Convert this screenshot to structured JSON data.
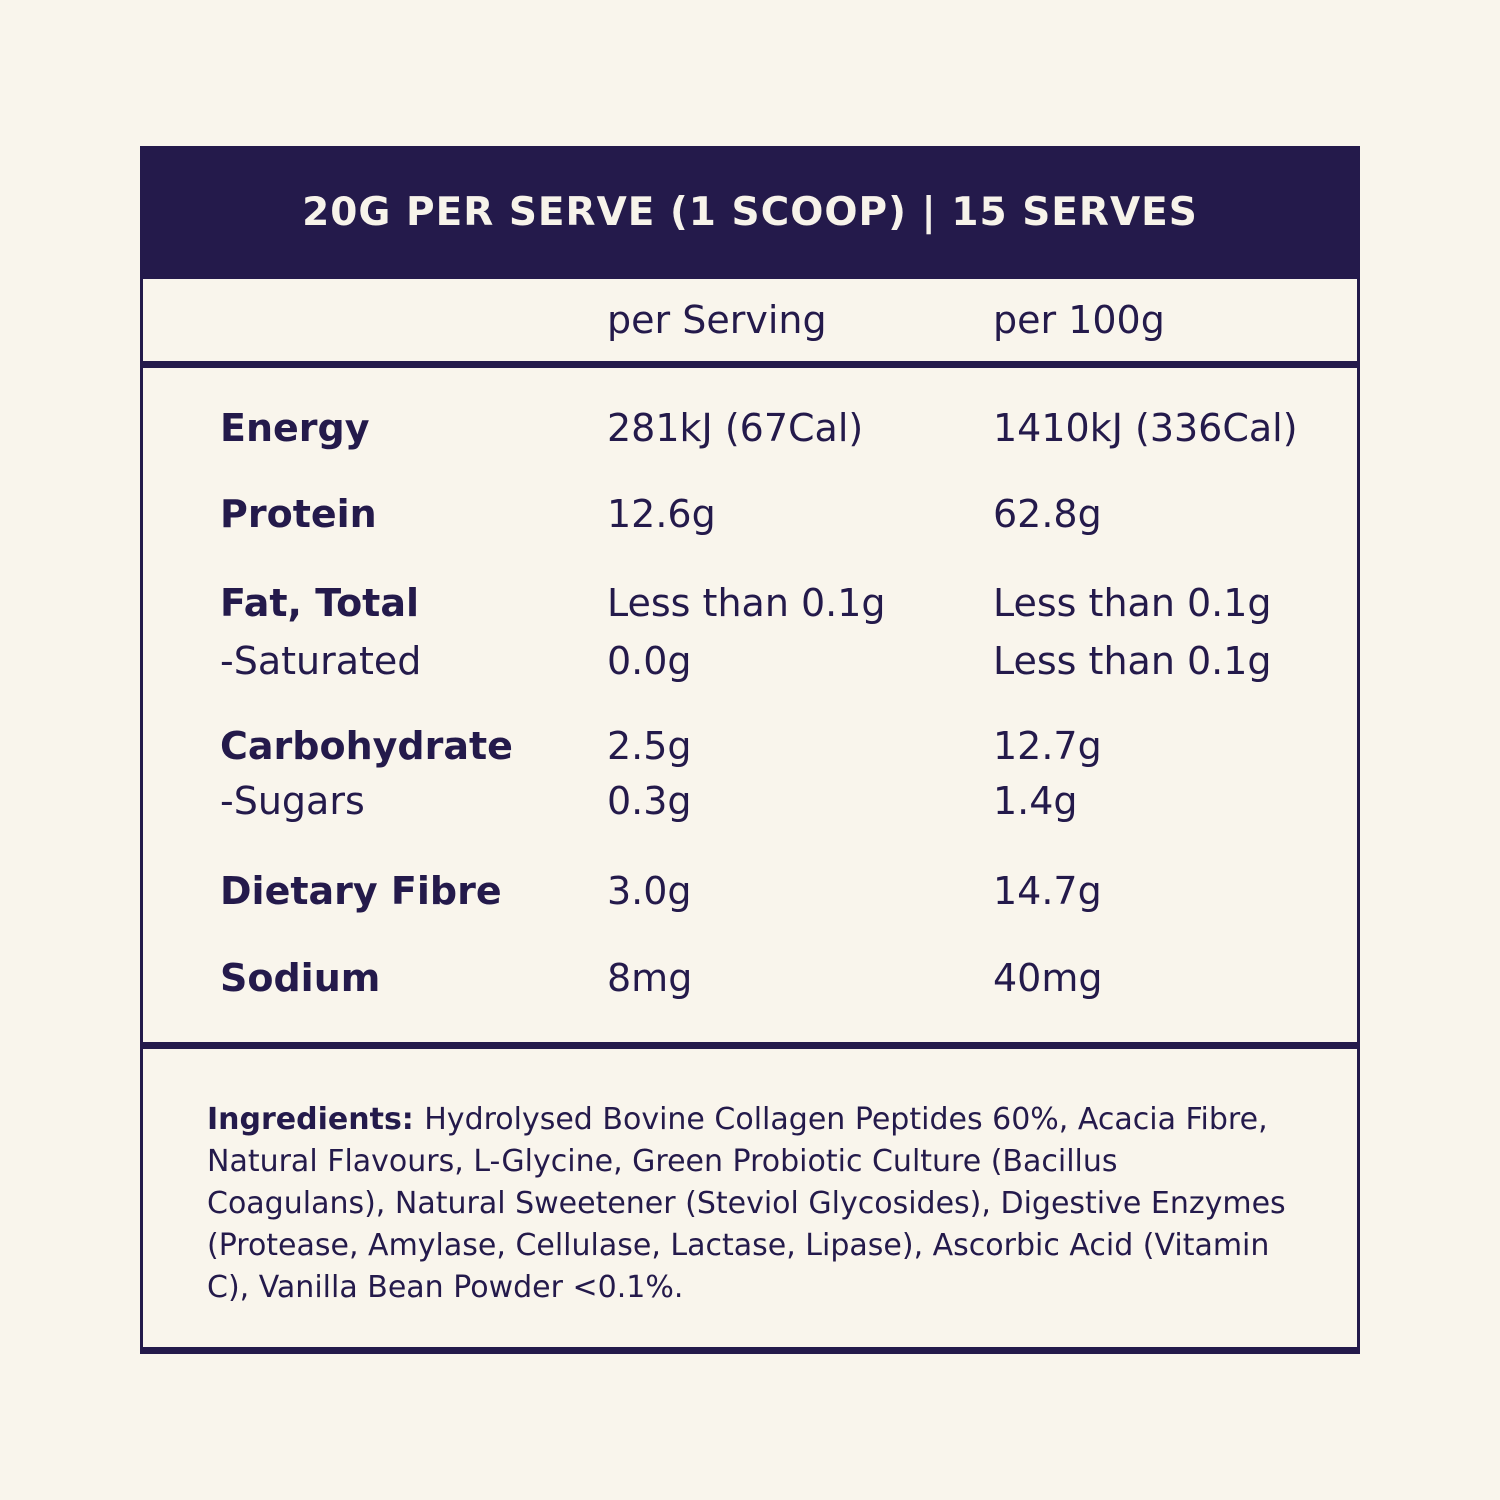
{
  "header": {
    "title": "20G PER SERVE (1 SCOOP) | 15 SERVES"
  },
  "table": {
    "columns": [
      {
        "label": "per Serving"
      },
      {
        "label": "per 100g"
      }
    ],
    "rows": [
      {
        "label": "Energy",
        "per_serving": "281kJ (67Cal)",
        "per_100g": "1410kJ (336Cal)",
        "sub_row": false
      },
      {
        "label": "Protein",
        "per_serving": "12.6g",
        "per_100g": "62.8g",
        "sub_row": false
      },
      {
        "label": "Fat, Total",
        "per_serving": "Less than 0.1g",
        "per_100g": "Less than 0.1g",
        "sub_row": false
      },
      {
        "label": "-Saturated",
        "per_serving": "0.0g",
        "per_100g": "Less than 0.1g",
        "sub_row": true
      },
      {
        "label": "Carbohydrate",
        "per_serving": "2.5g",
        "per_100g": "12.7g",
        "sub_row": false
      },
      {
        "label": "-Sugars",
        "per_serving": "0.3g",
        "per_100g": "1.4g",
        "sub_row": true
      },
      {
        "label": "Dietary Fibre",
        "per_serving": "3.0g",
        "per_100g": "14.7g",
        "sub_row": false
      },
      {
        "label": "Sodium",
        "per_serving": "8mg",
        "per_100g": "40mg",
        "sub_row": false
      }
    ]
  },
  "ingredients": {
    "label": "Ingredients:",
    "text": "Hydrolysed Bovine Collagen Peptides 60%, Acacia Fibre, Natural Flavours, L-Glycine, Green Probiotic Culture (Bacillus Coagulans), Natural Sweetener (Steviol Glycosides), Digestive Enzymes (Protease, Amylase, Cellulase, Lactase, Lipase), Ascorbic Acid (Vitamin C), Vanilla Bean Powder <0.1%."
  },
  "colors": {
    "navy": "#241a4b",
    "cream": "#f9f5ec",
    "header_text": "#f7f3ea"
  }
}
